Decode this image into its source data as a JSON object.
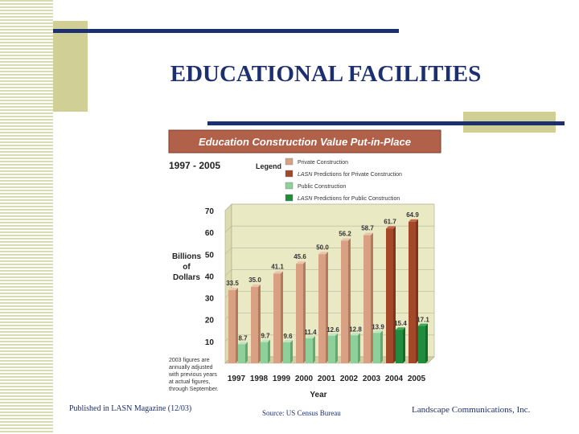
{
  "slide": {
    "title": "EDUCATIONAL FACILITIES",
    "published": "Published in LASN Magazine (12/03)",
    "source": "Source: US Census Bureau",
    "company": "Landscape Communications, Inc."
  },
  "colors": {
    "navy": "#1c2f6e",
    "khaki": "#cfcf96",
    "banner": "#b1614a",
    "private": "#d9a184",
    "private_pred": "#a4482a",
    "public": "#8ed09a",
    "public_pred": "#1f8d3d",
    "wall": "#e9e9c4",
    "floor": "#d0d0a4"
  },
  "chart_data": {
    "type": "bar",
    "title": "Education Construction Value Put-in-Place",
    "subtitle": "1997 - 2005",
    "legend_title": "Legend",
    "legend": [
      {
        "name": "Private Construction",
        "prefix": "",
        "text": "Private Construction"
      },
      {
        "name": "LASN Predictions for Private Construction",
        "prefix": "LASN",
        "text": " Predictions for Private Construction"
      },
      {
        "name": "Public Construction",
        "prefix": "",
        "text": "Public Construction"
      },
      {
        "name": "LASN Predictions for Public Construction",
        "prefix": "LASN",
        "text": " Predictions for Public Construction"
      }
    ],
    "categories": [
      "1997",
      "1998",
      "1999",
      "2000",
      "2001",
      "2002",
      "2003",
      "2004",
      "2005"
    ],
    "predicted_from_index": 7,
    "series": [
      {
        "name": "Private Construction",
        "values": [
          33.5,
          35.0,
          41.1,
          45.6,
          50.0,
          56.2,
          58.7,
          61.7,
          64.9
        ],
        "labels": [
          "33.5",
          "35.0",
          "41.1",
          "45.6",
          "50.0",
          "56.2",
          "58.7",
          "61.7",
          "64.9"
        ]
      },
      {
        "name": "Public Construction",
        "values": [
          8.7,
          9.7,
          9.6,
          11.4,
          12.6,
          12.8,
          13.9,
          15.4,
          17.1
        ],
        "labels": [
          "8.7",
          "9.7",
          "9.6",
          "11.4",
          "12.6",
          "12.8",
          "13.9",
          "15.4",
          "17.1"
        ]
      }
    ],
    "ylabel": [
      "Billions",
      "of",
      "Dollars"
    ],
    "xlabel": "Year",
    "ylim": [
      0,
      70
    ],
    "yticks": [
      10,
      20,
      30,
      40,
      50,
      60,
      70
    ],
    "note": [
      "2003 figures are",
      "annually adjusted",
      "with previous years",
      "at actual figures,",
      "through September."
    ]
  }
}
